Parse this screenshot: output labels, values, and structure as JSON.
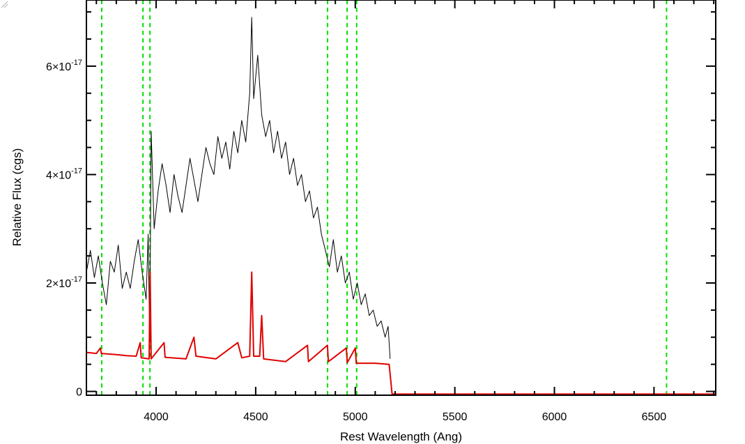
{
  "chart_data": {
    "type": "line",
    "title": "",
    "xlabel": "Rest Wavelength (Ang)",
    "ylabel": "Relative Flux (cgs)",
    "xlim": [
      3650,
      6810
    ],
    "ylim": [
      -7e-19,
      7.22e-17
    ],
    "x_ticks": [
      4000,
      4500,
      5000,
      5500,
      6000,
      6500
    ],
    "x_tick_labels": [
      "4000",
      "4500",
      "5000",
      "5500",
      "6000",
      "6500"
    ],
    "y_ticks": [
      {
        "value": 0,
        "mantissa": "0",
        "exponent": ""
      },
      {
        "value": 2e-17,
        "mantissa": "2×10",
        "exponent": "-17"
      },
      {
        "value": 4e-17,
        "mantissa": "4×10",
        "exponent": "-17"
      },
      {
        "value": 6e-17,
        "mantissa": "6×10",
        "exponent": "-17"
      }
    ],
    "reference_lines": [
      3727,
      3934,
      3969,
      4861,
      4959,
      5007,
      6563
    ],
    "grid": false,
    "colors": {
      "spectrum": "#000000",
      "template": "#e00000",
      "reference": "#00e000",
      "axes": "#000000"
    },
    "series": [
      {
        "values": [
          [
            3650,
            2.2e-17
          ],
          [
            3670,
            2.6e-17
          ],
          [
            3690,
            2.1e-17
          ],
          [
            3710,
            2.5e-17
          ],
          [
            3730,
            2e-17
          ],
          [
            3750,
            1.6e-17
          ],
          [
            3770,
            2.4e-17
          ],
          [
            3790,
            2.2e-17
          ],
          [
            3810,
            2.7e-17
          ],
          [
            3830,
            1.9e-17
          ],
          [
            3850,
            2.2e-17
          ],
          [
            3870,
            1.9e-17
          ],
          [
            3890,
            2.4e-17
          ],
          [
            3910,
            2.8e-17
          ],
          [
            3930,
            2.2e-17
          ],
          [
            3950,
            1.7e-17
          ],
          [
            3960,
            2.9e-17
          ],
          [
            3968,
            9e-18
          ],
          [
            3975,
            4.8e-17
          ],
          [
            3990,
            3e-17
          ],
          [
            4010,
            3.7e-17
          ],
          [
            4030,
            4.2e-17
          ],
          [
            4050,
            3.8e-17
          ],
          [
            4070,
            3.3e-17
          ],
          [
            4090,
            4e-17
          ],
          [
            4110,
            3.6e-17
          ],
          [
            4130,
            3.3e-17
          ],
          [
            4150,
            3.8e-17
          ],
          [
            4170,
            4.3e-17
          ],
          [
            4190,
            3.9e-17
          ],
          [
            4210,
            3.5e-17
          ],
          [
            4230,
            4e-17
          ],
          [
            4250,
            4.5e-17
          ],
          [
            4270,
            4.2e-17
          ],
          [
            4290,
            4e-17
          ],
          [
            4310,
            4.7e-17
          ],
          [
            4330,
            4.3e-17
          ],
          [
            4350,
            4.6e-17
          ],
          [
            4370,
            4.1e-17
          ],
          [
            4390,
            4.8e-17
          ],
          [
            4410,
            4.4e-17
          ],
          [
            4430,
            5e-17
          ],
          [
            4450,
            4.6e-17
          ],
          [
            4470,
            5.5e-17
          ],
          [
            4480,
            6.9e-17
          ],
          [
            4490,
            5.4e-17
          ],
          [
            4510,
            6.2e-17
          ],
          [
            4530,
            5.1e-17
          ],
          [
            4550,
            4.7e-17
          ],
          [
            4570,
            5e-17
          ],
          [
            4590,
            4.4e-17
          ],
          [
            4610,
            4.8e-17
          ],
          [
            4630,
            4.3e-17
          ],
          [
            4650,
            4.6e-17
          ],
          [
            4670,
            4e-17
          ],
          [
            4690,
            4.3e-17
          ],
          [
            4710,
            3.8e-17
          ],
          [
            4730,
            4e-17
          ],
          [
            4750,
            3.5e-17
          ],
          [
            4770,
            3.7e-17
          ],
          [
            4790,
            3.2e-17
          ],
          [
            4810,
            3.4e-17
          ],
          [
            4830,
            2.9e-17
          ],
          [
            4850,
            2.6e-17
          ],
          [
            4870,
            2.3e-17
          ],
          [
            4890,
            2.8e-17
          ],
          [
            4910,
            2.2e-17
          ],
          [
            4930,
            2.5e-17
          ],
          [
            4950,
            2e-17
          ],
          [
            4970,
            2.2e-17
          ],
          [
            4990,
            1.7e-17
          ],
          [
            5010,
            2e-17
          ],
          [
            5030,
            1.6e-17
          ],
          [
            5050,
            1.8e-17
          ],
          [
            5070,
            1.4e-17
          ],
          [
            5090,
            1.5e-17
          ],
          [
            5110,
            1.2e-17
          ],
          [
            5130,
            1.3e-17
          ],
          [
            5150,
            1e-17
          ],
          [
            5165,
            1.2e-17
          ],
          [
            5175,
            6e-18
          ]
        ]
      },
      {
        "values": [
          [
            3650,
            7.2e-18
          ],
          [
            3700,
            7e-18
          ],
          [
            3720,
            8e-18
          ],
          [
            3725,
            7e-18
          ],
          [
            3800,
            6.8e-18
          ],
          [
            3850,
            6.6e-18
          ],
          [
            3900,
            6.5e-18
          ],
          [
            3920,
            9e-18
          ],
          [
            3925,
            6.2e-18
          ],
          [
            3965,
            6e-18
          ],
          [
            3970,
            2.2e-17
          ],
          [
            3975,
            6e-18
          ],
          [
            4040,
            9e-18
          ],
          [
            4045,
            6.3e-18
          ],
          [
            4150,
            6e-18
          ],
          [
            4190,
            1e-17
          ],
          [
            4200,
            6.5e-18
          ],
          [
            4300,
            6e-18
          ],
          [
            4410,
            9e-18
          ],
          [
            4430,
            6.2e-18
          ],
          [
            4470,
            6.5e-18
          ],
          [
            4480,
            2.2e-17
          ],
          [
            4490,
            6.5e-18
          ],
          [
            4520,
            6.5e-18
          ],
          [
            4530,
            1.4e-17
          ],
          [
            4540,
            6e-18
          ],
          [
            4650,
            5.5e-18
          ],
          [
            4760,
            8.5e-18
          ],
          [
            4765,
            5.5e-18
          ],
          [
            4860,
            8.5e-18
          ],
          [
            4865,
            5.5e-18
          ],
          [
            4955,
            8e-18
          ],
          [
            4960,
            5.3e-18
          ],
          [
            5000,
            8e-18
          ],
          [
            5005,
            5.2e-18
          ],
          [
            5100,
            5.2e-18
          ],
          [
            5170,
            5e-18
          ],
          [
            5185,
            -5e-19
          ],
          [
            6810,
            -5e-19
          ]
        ]
      }
    ]
  }
}
